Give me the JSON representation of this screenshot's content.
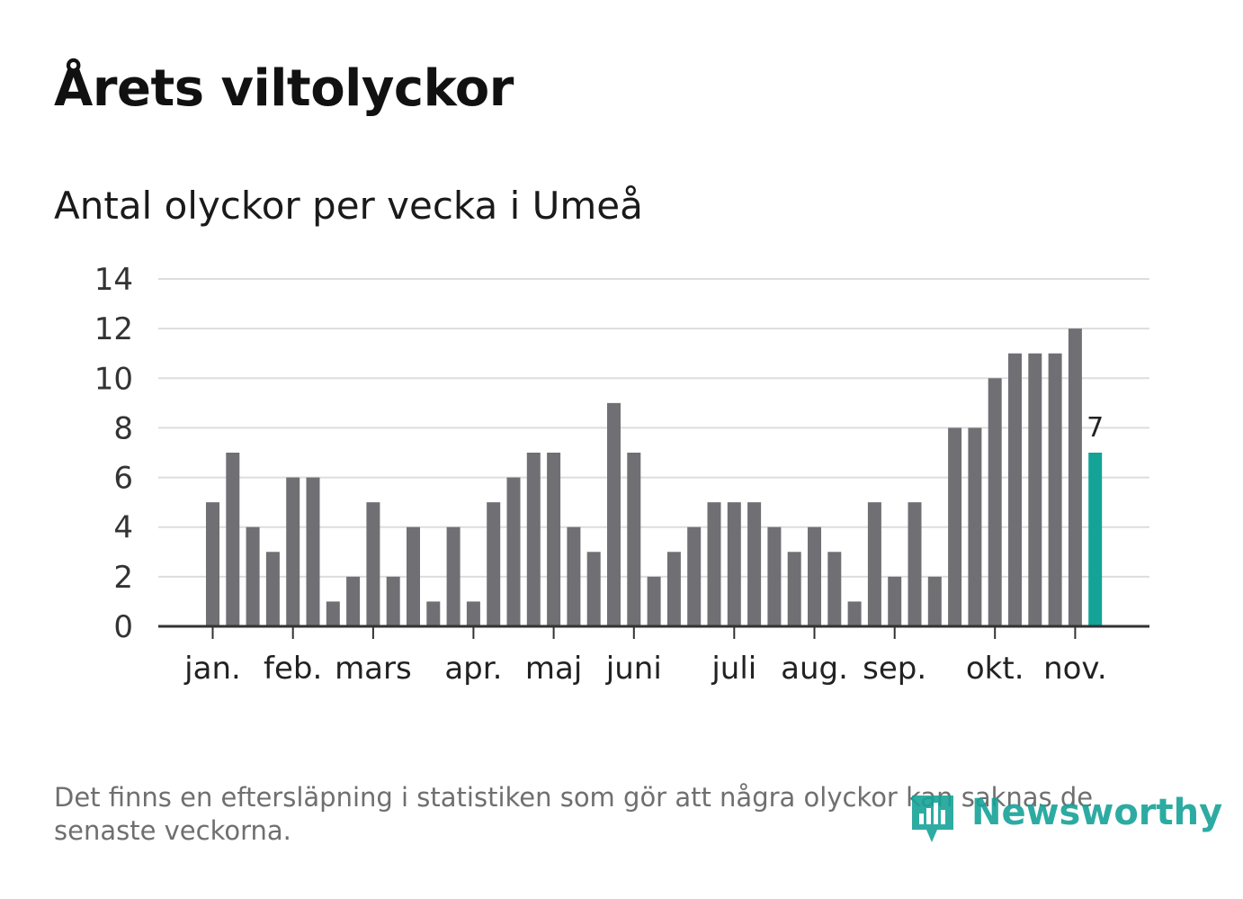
{
  "title": "Årets viltolyckor",
  "subtitle": "Antal olyckor per vecka i Umeå",
  "footnote": "Det finns en eftersläpning i statistiken som gör att några olyckor kan saknas de senaste veckorna.",
  "logo": {
    "text": "Newsworthy",
    "icon": "bar-chart-pin-icon"
  },
  "colors": {
    "bar": "#706f74",
    "highlight": "#13a397",
    "grid": "#dddddd",
    "axis": "#333333",
    "logo": "#17a398"
  },
  "chart_data": {
    "type": "bar",
    "title": "Antal olyckor per vecka i Umeå",
    "xlabel": "",
    "ylabel": "",
    "ylim": [
      0,
      14
    ],
    "yticks": [
      0,
      2,
      4,
      6,
      8,
      10,
      12,
      14
    ],
    "grid": true,
    "values": [
      5,
      7,
      4,
      3,
      6,
      6,
      1,
      2,
      5,
      2,
      4,
      1,
      4,
      1,
      5,
      6,
      7,
      7,
      4,
      3,
      9,
      7,
      2,
      3,
      4,
      5,
      5,
      5,
      4,
      3,
      4,
      3,
      1,
      5,
      2,
      5,
      2,
      8,
      8,
      10,
      11,
      11,
      11,
      12,
      7
    ],
    "highlight_index": 44,
    "highlight_label": "7",
    "month_labels": [
      {
        "label": "jan.",
        "week_index": 0
      },
      {
        "label": "feb.",
        "week_index": 4
      },
      {
        "label": "mars",
        "week_index": 8
      },
      {
        "label": "apr.",
        "week_index": 13
      },
      {
        "label": "maj",
        "week_index": 17
      },
      {
        "label": "juni",
        "week_index": 21
      },
      {
        "label": "juli",
        "week_index": 26
      },
      {
        "label": "aug.",
        "week_index": 30
      },
      {
        "label": "sep.",
        "week_index": 34
      },
      {
        "label": "okt.",
        "week_index": 39
      },
      {
        "label": "nov.",
        "week_index": 43
      }
    ]
  }
}
